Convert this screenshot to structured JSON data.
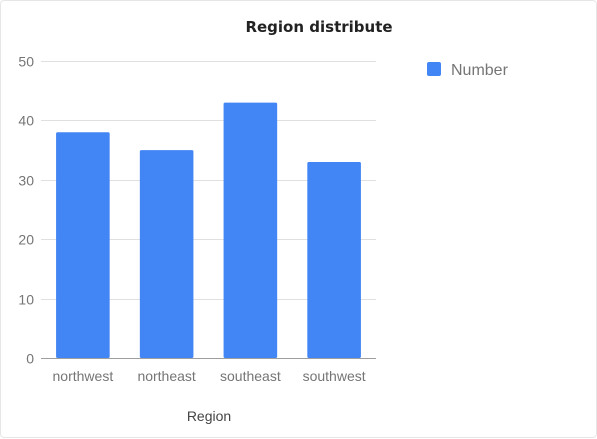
{
  "chart_data": {
    "type": "bar",
    "title": "Region distribute",
    "xlabel": "Region",
    "ylabel": "",
    "categories": [
      "northwest",
      "northeast",
      "southeast",
      "southwest"
    ],
    "series": [
      {
        "name": "Number",
        "values": [
          38,
          35,
          43,
          33
        ],
        "color": "#4285f4"
      }
    ],
    "ylim": [
      0,
      50
    ],
    "yticks": [
      0,
      10,
      20,
      30,
      40,
      50
    ],
    "grid": true,
    "legend_position": "right"
  }
}
